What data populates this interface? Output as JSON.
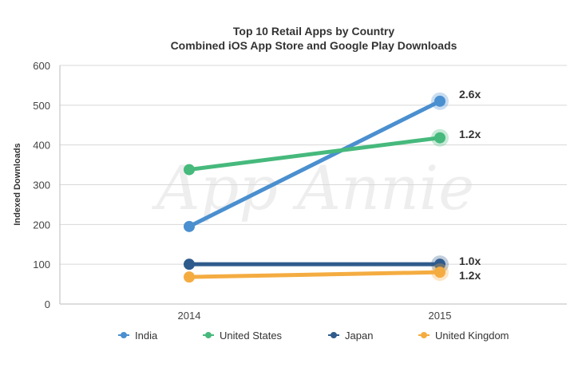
{
  "chart_data": {
    "type": "line",
    "title": "Top 10 Retail Apps by Country",
    "subtitle": "Combined iOS App Store and Google Play Downloads",
    "xlabel": "",
    "ylabel": "Indexed Downloads",
    "categories": [
      "2014",
      "2015"
    ],
    "ylim": [
      0,
      600
    ],
    "yticks": [
      0,
      100,
      200,
      300,
      400,
      500,
      600
    ],
    "grid": true,
    "legend_position": "bottom",
    "watermark": "App Annie",
    "series": [
      {
        "name": "India",
        "values": [
          195,
          510
        ],
        "growth_label": "2.6x",
        "color": "#4a8fcf"
      },
      {
        "name": "United States",
        "values": [
          338,
          418
        ],
        "growth_label": "1.2x",
        "color": "#46b97c"
      },
      {
        "name": "Japan",
        "values": [
          100,
          100
        ],
        "growth_label": "1.0x",
        "color": "#2f5b8c"
      },
      {
        "name": "United Kingdom",
        "values": [
          68,
          80
        ],
        "growth_label": "1.2x",
        "color": "#f4ac41"
      }
    ]
  }
}
